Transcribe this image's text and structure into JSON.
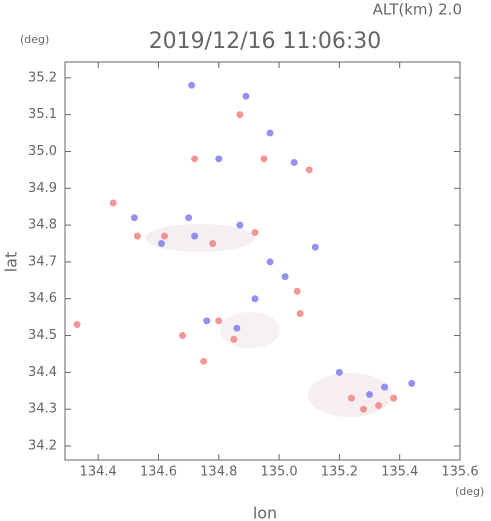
{
  "chart_data": {
    "type": "scatter",
    "title": "2019/12/16 11:06:30",
    "subtitle": "ALT(km) 2.0",
    "ylabel": "lat",
    "xlabel": "lon",
    "yunit": "(deg)",
    "xunit": "(deg)",
    "xlim": [
      134.29,
      135.6
    ],
    "ylim": [
      34.162,
      35.243
    ],
    "xticks": [
      134.4,
      134.6,
      134.8,
      {
        "value": 135,
        "label": "135.0"
      },
      135.2,
      135.4,
      135.6
    ],
    "yticks": [
      34.2,
      34.3,
      34.4,
      34.5,
      34.6,
      34.7,
      34.8,
      34.9,
      {
        "value": 35,
        "label": "35.0"
      },
      35.1,
      35.2
    ],
    "series": [
      {
        "color": "#7f7ff0",
        "x": [
          134.71,
          134.89,
          134.8,
          135.05,
          134.7,
          134.72,
          134.97,
          135.02,
          134.92,
          134.52,
          134.76,
          134.86,
          135.3,
          135.35,
          135.44,
          134.97,
          135.12,
          134.61,
          134.87,
          135.2
        ],
        "values": [
          35.18,
          35.15,
          34.98,
          34.97,
          34.82,
          34.77,
          34.7,
          34.66,
          34.6,
          34.82,
          34.54,
          34.52,
          34.34,
          34.36,
          34.37,
          35.05,
          34.74,
          34.75,
          34.8,
          34.4
        ]
      },
      {
        "color": "#f08484",
        "x": [
          134.87,
          134.95,
          134.72,
          134.53,
          134.62,
          134.78,
          135.06,
          135.07,
          134.85,
          134.68,
          134.8,
          135.28,
          135.33,
          135.38,
          135.24,
          134.92,
          134.75,
          134.33,
          134.45,
          135.1
        ],
        "values": [
          35.1,
          34.98,
          34.98,
          34.77,
          34.77,
          34.75,
          34.62,
          34.56,
          34.49,
          34.5,
          34.54,
          34.3,
          34.31,
          34.33,
          34.33,
          34.78,
          34.43,
          34.53,
          34.86,
          34.95
        ]
      }
    ]
  }
}
